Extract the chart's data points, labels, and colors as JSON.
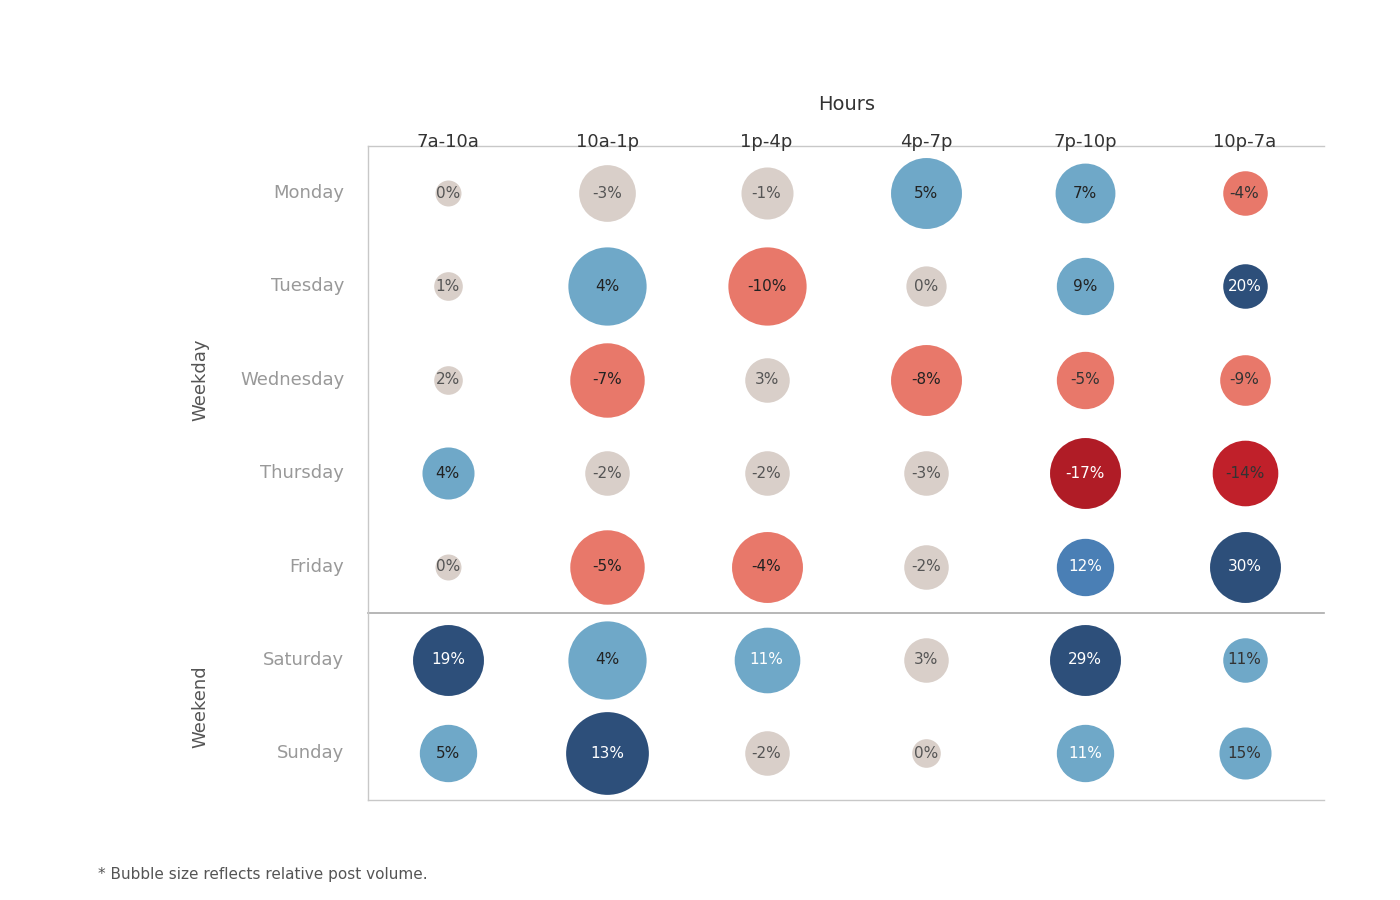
{
  "title": "Hours",
  "col_labels": [
    "7a-10a",
    "10a-1p",
    "1p-4p",
    "4p-7p",
    "7p-10p",
    "10p-7a"
  ],
  "row_labels": [
    "Monday",
    "Tuesday",
    "Wednesday",
    "Thursday",
    "Friday",
    "Saturday",
    "Sunday"
  ],
  "weekday_label": "Weekday",
  "weekend_label": "Weekend",
  "values": [
    [
      0,
      -3,
      -1,
      5,
      7,
      -4
    ],
    [
      1,
      4,
      -10,
      0,
      9,
      20
    ],
    [
      2,
      -7,
      3,
      -8,
      -5,
      -9
    ],
    [
      4,
      -2,
      -2,
      -3,
      -17,
      -14
    ],
    [
      0,
      -5,
      -4,
      -2,
      12,
      30
    ],
    [
      19,
      4,
      11,
      3,
      29,
      11
    ],
    [
      5,
      13,
      -2,
      0,
      11,
      15
    ]
  ],
  "bubble_sizes": [
    [
      200,
      550,
      480,
      800,
      600,
      380
    ],
    [
      220,
      950,
      950,
      330,
      560,
      380
    ],
    [
      220,
      870,
      380,
      800,
      560,
      460
    ],
    [
      480,
      380,
      380,
      380,
      800,
      700
    ],
    [
      200,
      870,
      800,
      380,
      560,
      800
    ],
    [
      800,
      950,
      700,
      380,
      800,
      380
    ],
    [
      560,
      1050,
      380,
      220,
      560,
      480
    ]
  ],
  "colors": [
    [
      "#d9cfc9",
      "#d9cfc9",
      "#d9cfc9",
      "#6fa8c8",
      "#6fa8c8",
      "#e8786a"
    ],
    [
      "#d9cfc9",
      "#6fa8c8",
      "#e8786a",
      "#d9cfc9",
      "#6fa8c8",
      "#2d4f7a"
    ],
    [
      "#d9cfc9",
      "#e8786a",
      "#d9cfc9",
      "#e8786a",
      "#e8786a",
      "#e8786a"
    ],
    [
      "#6fa8c8",
      "#d9cfc9",
      "#d9cfc9",
      "#d9cfc9",
      "#b01c26",
      "#c0202a"
    ],
    [
      "#d9cfc9",
      "#e8786a",
      "#e8786a",
      "#d9cfc9",
      "#4a7fb5",
      "#2d4f7a"
    ],
    [
      "#2d4f7a",
      "#6fa8c8",
      "#6fa8c8",
      "#d9cfc9",
      "#2d4f7a",
      "#6fa8c8"
    ],
    [
      "#6fa8c8",
      "#2d4f7a",
      "#d9cfc9",
      "#d9cfc9",
      "#6fa8c8",
      "#6fa8c8"
    ]
  ],
  "text_colors": [
    [
      "#555555",
      "#555555",
      "#555555",
      "#222222",
      "#222222",
      "#333333"
    ],
    [
      "#555555",
      "#222222",
      "#222222",
      "#555555",
      "#222222",
      "#ffffff"
    ],
    [
      "#555555",
      "#222222",
      "#555555",
      "#222222",
      "#333333",
      "#333333"
    ],
    [
      "#222222",
      "#555555",
      "#555555",
      "#555555",
      "#ffffff",
      "#333333"
    ],
    [
      "#555555",
      "#222222",
      "#222222",
      "#555555",
      "#ffffff",
      "#ffffff"
    ],
    [
      "#ffffff",
      "#222222",
      "#ffffff",
      "#555555",
      "#ffffff",
      "#333333"
    ],
    [
      "#222222",
      "#ffffff",
      "#555555",
      "#555555",
      "#ffffff",
      "#333333"
    ]
  ],
  "footnote": "* Bubble size reflects relative post volume.",
  "bg_color": "#ffffff",
  "grid_color": "#c8c8c8",
  "divider_color": "#aaaaaa",
  "weekday_weekend_divider_row": 4.5,
  "n_weekday_rows": 5,
  "n_weekend_rows": 2
}
